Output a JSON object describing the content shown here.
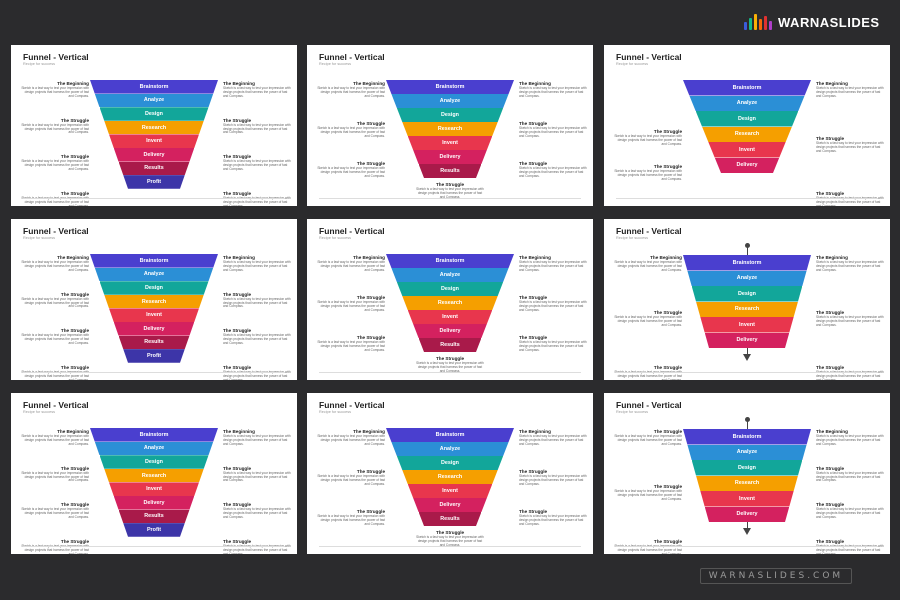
{
  "brand": {
    "name": "WARNASLIDES",
    "logo_icon": "bar-chart-icon",
    "logo_colors": [
      "#3b5bdb",
      "#12b886",
      "#fab005",
      "#f76707",
      "#e03131",
      "#ae3ec9"
    ],
    "site": "WARNASLIDES.COM"
  },
  "colors": {
    "Brainstorm": "#4a3fcf",
    "Analyze": "#2b8fd6",
    "Design": "#12a69a",
    "Research": "#f59f00",
    "Invent": "#e8364d",
    "Delivery": "#d4215f",
    "Results": "#a91a4a",
    "Profit": "#3d35a8"
  },
  "slides": [
    {
      "title": "Funnel - Vertical",
      "subtitle": "Recipe for success",
      "steps": [
        "Brainstorm",
        "Analyze",
        "Design",
        "Research",
        "Invent",
        "Delivery",
        "Results",
        "Profit"
      ],
      "left": [
        {
          "heading": "The Beginning",
          "body": "Sketch is a fast way to test your impression with design projects that harness the power of fast and Compass."
        },
        {
          "heading": "The Struggle",
          "body": "Sketch is a fast way to test your impression with design projects that harness the power of fast and Compass."
        },
        {
          "heading": "The Struggle",
          "body": "Sketch is a fast way to test your impression with design projects that harness the power of fast and Compass."
        },
        {
          "heading": "The Struggle",
          "body": "Sketch is a fast way to test your impression with design projects that harness the power of fast and Compass."
        }
      ],
      "right": [
        {
          "heading": "The Beginning",
          "body": "Sketch is a fast way to test your impression with design projects that harness the power of fast and Compass."
        },
        {
          "heading": "The Struggle",
          "body": "Sketch is a fast way to test your impression with design projects that harness the power of fast and Compass."
        },
        {
          "heading": "The Struggle",
          "body": "Sketch is a fast way to test your impression with design projects that harness the power of fast and Compass."
        },
        {
          "heading": "The Struggle",
          "body": "Sketch is a fast way to test your impression with design projects that harness the power of fast and Compass."
        }
      ]
    },
    {
      "title": "Funnel - Vertical",
      "subtitle": "Recipe for success",
      "steps": [
        "Brainstorm",
        "Analyze",
        "Design",
        "Research",
        "Invent",
        "Delivery",
        "Results"
      ],
      "left": [
        {
          "heading": "The Beginning",
          "body": "Sketch is a fast way to test your impression with design projects that harness the power of fast and Compass."
        },
        {
          "heading": "The Struggle",
          "body": "Sketch is a fast way to test your impression with design projects that harness the power of fast and Compass."
        },
        {
          "heading": "The Struggle",
          "body": "Sketch is a fast way to test your impression with design projects that harness the power of fast and Compass."
        }
      ],
      "right": [
        {
          "heading": "The Beginning",
          "body": "Sketch is a fast way to test your impression with design projects that harness the power of fast and Compass."
        },
        {
          "heading": "The Struggle",
          "body": "Sketch is a fast way to test your impression with design projects that harness the power of fast and Compass."
        },
        {
          "heading": "The Struggle",
          "body": "Sketch is a fast way to test your impression with design projects that harness the power of fast and Compass."
        }
      ],
      "bottom": {
        "heading": "The Struggle",
        "body": "Sketch is a fast way to test your impression with design projects that harness the power of fast and Compass."
      }
    },
    {
      "title": "Funnel - Vertical",
      "subtitle": "Recipe for success",
      "steps": [
        "Brainstorm",
        "Analyze",
        "Design",
        "Research",
        "Invent",
        "Delivery"
      ],
      "left": [
        {
          "heading": "The Struggle",
          "body": "Sketch is a fast way to test your impression with design projects that harness the power of fast and Compass."
        },
        {
          "heading": "The Struggle",
          "body": "Sketch is a fast way to test your impression with design projects that harness the power of fast and Compass."
        }
      ],
      "right": [
        {
          "heading": "The Beginning",
          "body": "Sketch is a fast way to test your impression with design projects that harness the power of fast and Compass."
        },
        {
          "heading": "The Struggle",
          "body": "Sketch is a fast way to test your impression with design projects that harness the power of fast and Compass."
        },
        {
          "heading": "The Struggle",
          "body": "Sketch is a fast way to test your impression with design projects that harness the power of fast and Compass."
        }
      ]
    },
    {
      "title": "Funnel - Vertical",
      "subtitle": "Recipe for success",
      "steps": [
        "Brainstorm",
        "Analyze",
        "Design",
        "Research",
        "Invent",
        "Delivery",
        "Results",
        "Profit"
      ],
      "left": [
        {
          "heading": "The Beginning",
          "body": "Sketch is a fast way to test your impression with design projects that harness the power of fast and Compass."
        },
        {
          "heading": "The Struggle",
          "body": "Sketch is a fast way to test your impression with design projects that harness the power of fast and Compass."
        },
        {
          "heading": "The Struggle",
          "body": "Sketch is a fast way to test your impression with design projects that harness the power of fast and Compass."
        },
        {
          "heading": "The Struggle",
          "body": "Sketch is a fast way to test your impression with design projects that harness the power of fast and Compass."
        }
      ],
      "right": [
        {
          "heading": "The Beginning",
          "body": "Sketch is a fast way to test your impression with design projects that harness the power of fast and Compass."
        },
        {
          "heading": "The Struggle",
          "body": "Sketch is a fast way to test your impression with design projects that harness the power of fast and Compass."
        },
        {
          "heading": "The Struggle",
          "body": "Sketch is a fast way to test your impression with design projects that harness the power of fast and Compass."
        },
        {
          "heading": "The Struggle",
          "body": "Sketch is a fast way to test your impression with design projects that harness the power of fast and Compass."
        }
      ]
    },
    {
      "title": "Funnel - Vertical",
      "subtitle": "Recipe for success",
      "steps": [
        "Brainstorm",
        "Analyze",
        "Design",
        "Research",
        "Invent",
        "Delivery",
        "Results"
      ],
      "left": [
        {
          "heading": "The Beginning",
          "body": "Sketch is a fast way to test your impression with design projects that harness the power of fast and Compass."
        },
        {
          "heading": "The Struggle",
          "body": "Sketch is a fast way to test your impression with design projects that harness the power of fast and Compass."
        },
        {
          "heading": "The Struggle",
          "body": "Sketch is a fast way to test your impression with design projects that harness the power of fast and Compass."
        }
      ],
      "right": [
        {
          "heading": "The Beginning",
          "body": "Sketch is a fast way to test your impression with design projects that harness the power of fast and Compass."
        },
        {
          "heading": "The Struggle",
          "body": "Sketch is a fast way to test your impression with design projects that harness the power of fast and Compass."
        },
        {
          "heading": "The Struggle",
          "body": "Sketch is a fast way to test your impression with design projects that harness the power of fast and Compass."
        }
      ],
      "bottom": {
        "heading": "The Struggle",
        "body": "Sketch is a fast way to test your impression with design projects that harness the power of fast and Compass."
      }
    },
    {
      "title": "Funnel - Vertical",
      "subtitle": "Recipe for success",
      "steps": [
        "Brainstorm",
        "Analyze",
        "Design",
        "Research",
        "Invent",
        "Delivery"
      ],
      "arrow": true,
      "left": [
        {
          "heading": "The Beginning",
          "body": "Sketch is a fast way to test your impression with design projects that harness the power of fast and Compass."
        },
        {
          "heading": "The Struggle",
          "body": "Sketch is a fast way to test your impression with design projects that harness the power of fast and Compass."
        },
        {
          "heading": "The Struggle",
          "body": "Sketch is a fast way to test your impression with design projects that harness the power of fast and Compass."
        }
      ],
      "right": [
        {
          "heading": "The Beginning",
          "body": "Sketch is a fast way to test your impression with design projects that harness the power of fast and Compass."
        },
        {
          "heading": "The Struggle",
          "body": "Sketch is a fast way to test your impression with design projects that harness the power of fast and Compass."
        },
        {
          "heading": "The Struggle",
          "body": "Sketch is a fast way to test your impression with design projects that harness the power of fast and Compass."
        }
      ]
    },
    {
      "title": "Funnel - Vertical",
      "subtitle": "Recipe for success",
      "steps": [
        "Brainstorm",
        "Analyze",
        "Design",
        "Research",
        "Invent",
        "Delivery",
        "Results",
        "Profit"
      ],
      "left": [
        {
          "heading": "The Beginning",
          "body": "Sketch is a fast way to test your impression with design projects that harness the power of fast and Compass."
        },
        {
          "heading": "The Struggle",
          "body": "Sketch is a fast way to test your impression with design projects that harness the power of fast and Compass."
        },
        {
          "heading": "The Struggle",
          "body": "Sketch is a fast way to test your impression with design projects that harness the power of fast and Compass."
        },
        {
          "heading": "The Struggle",
          "body": "Sketch is a fast way to test your impression with design projects that harness the power of fast and Compass."
        }
      ],
      "right": [
        {
          "heading": "The Beginning",
          "body": "Sketch is a fast way to test your impression with design projects that harness the power of fast and Compass."
        },
        {
          "heading": "The Struggle",
          "body": "Sketch is a fast way to test your impression with design projects that harness the power of fast and Compass."
        },
        {
          "heading": "The Struggle",
          "body": "Sketch is a fast way to test your impression with design projects that harness the power of fast and Compass."
        },
        {
          "heading": "The Struggle",
          "body": "Sketch is a fast way to test your impression with design projects that harness the power of fast and Compass."
        }
      ]
    },
    {
      "title": "Funnel - Vertical",
      "subtitle": "Recipe for success",
      "steps": [
        "Brainstorm",
        "Analyze",
        "Design",
        "Research",
        "Invent",
        "Delivery",
        "Results"
      ],
      "left": [
        {
          "heading": "The Beginning",
          "body": "Sketch is a fast way to test your impression with design projects that harness the power of fast and Compass."
        },
        {
          "heading": "The Struggle",
          "body": "Sketch is a fast way to test your impression with design projects that harness the power of fast and Compass."
        },
        {
          "heading": "The Struggle",
          "body": "Sketch is a fast way to test your impression with design projects that harness the power of fast and Compass."
        }
      ],
      "right": [
        {
          "heading": "The Beginning",
          "body": "Sketch is a fast way to test your impression with design projects that harness the power of fast and Compass."
        },
        {
          "heading": "The Struggle",
          "body": "Sketch is a fast way to test your impression with design projects that harness the power of fast and Compass."
        },
        {
          "heading": "The Struggle",
          "body": "Sketch is a fast way to test your impression with design projects that harness the power of fast and Compass."
        }
      ],
      "bottom": {
        "heading": "The Struggle",
        "body": "Sketch is a fast way to test your impression with design projects that harness the power of fast and Compass."
      }
    },
    {
      "title": "Funnel - Vertical",
      "subtitle": "Recipe for success",
      "steps": [
        "Brainstorm",
        "Analyze",
        "Design",
        "Research",
        "Invent",
        "Delivery"
      ],
      "arrow": true,
      "left": [
        {
          "heading": "The Struggle",
          "body": "Sketch is a fast way to test your impression with design projects that harness the power of fast and Compass."
        },
        {
          "heading": "The Struggle",
          "body": "Sketch is a fast way to test your impression with design projects that harness the power of fast and Compass."
        },
        {
          "heading": "The Struggle",
          "body": "Sketch is a fast way to test your impression with design projects that harness the power of fast and Compass."
        }
      ],
      "right": [
        {
          "heading": "The Beginning",
          "body": "Sketch is a fast way to test your impression with design projects that harness the power of fast and Compass."
        },
        {
          "heading": "The Struggle",
          "body": "Sketch is a fast way to test your impression with design projects that harness the power of fast and Compass."
        },
        {
          "heading": "The Struggle",
          "body": "Sketch is a fast way to test your impression with design projects that harness the power of fast and Compass."
        },
        {
          "heading": "The Struggle",
          "body": "Sketch is a fast way to test your impression with design projects that harness the power of fast and Compass."
        }
      ]
    }
  ]
}
